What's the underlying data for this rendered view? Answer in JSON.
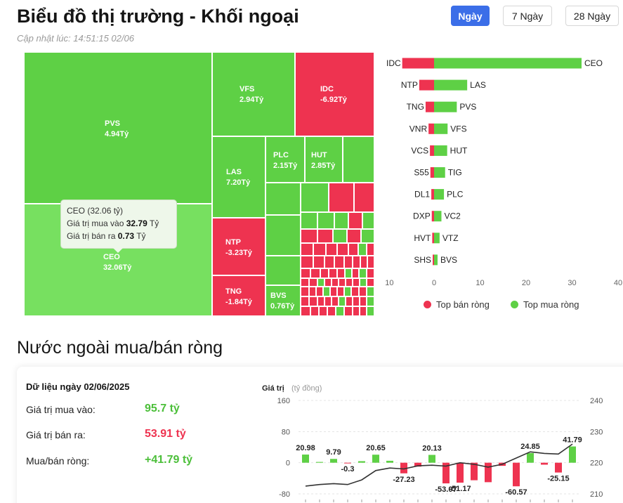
{
  "header": {
    "title": "Biểu đồ thị trường - Khối ngoại",
    "updated": "Cập nhật lúc: 14:51:15 02/06",
    "periods": [
      "Ngày",
      "7 Ngày",
      "28 Ngày"
    ],
    "active_period": "Ngày"
  },
  "colors": {
    "buy": "#5ed045",
    "sell": "#ee3350",
    "active_button": "#3b6ee8"
  },
  "treemap": {
    "tiles": [
      {
        "ticker": "PVS",
        "value": "4.94Tỷ"
      },
      {
        "ticker": "CEO",
        "value": "32.06Tỷ"
      },
      {
        "ticker": "VFS",
        "value": "2.94Tỷ"
      },
      {
        "ticker": "IDC",
        "value": "-6.92Tỷ"
      },
      {
        "ticker": "LAS",
        "value": "7.20Tỷ"
      },
      {
        "ticker": "PLC",
        "value": "2.15Tỷ"
      },
      {
        "ticker": "HUT",
        "value": "2.85Tỷ"
      },
      {
        "ticker": "NTP",
        "value": "-3.23Tỷ"
      },
      {
        "ticker": "TNG",
        "value": "-1.84Tỷ"
      },
      {
        "ticker": "BVS",
        "value": "0.76Tỷ"
      }
    ],
    "tooltip": {
      "title": "CEO (32.06 tỷ)",
      "buy_label": "Giá trị mua vào",
      "buy_value": "32.79",
      "sell_label": "Giá trị bán ra",
      "sell_value": "0.73",
      "unit": "Tỷ"
    }
  },
  "top_chart": {
    "sell_tickers": [
      "IDC",
      "NTP",
      "TNG",
      "VNR",
      "VCS",
      "S55",
      "DL1",
      "DXP",
      "HVT",
      "SHS"
    ],
    "sell_values": [
      -6.92,
      -3.23,
      -1.84,
      -1.2,
      -0.9,
      -0.8,
      -0.6,
      -0.5,
      -0.4,
      -0.3
    ],
    "buy_tickers": [
      "CEO",
      "LAS",
      "PVS",
      "VFS",
      "HUT",
      "TIG",
      "PLC",
      "VC2",
      "VTZ",
      "BVS"
    ],
    "buy_values": [
      32.06,
      7.2,
      4.94,
      2.94,
      2.85,
      2.4,
      2.15,
      1.6,
      1.2,
      0.76
    ],
    "xticks": [
      "-10",
      "0",
      "10",
      "20",
      "30",
      "40"
    ],
    "legend_sell": "Top bán ròng",
    "legend_buy": "Top mua ròng"
  },
  "net_section": {
    "title": "Nước ngoài mua/bán ròng",
    "date": "Dữ liệu ngày 02/06/2025",
    "rows": [
      {
        "label": "Giá trị mua vào:",
        "value": "95.7 tỷ",
        "color": "green"
      },
      {
        "label": "Giá trị bán ra:",
        "value": "53.91 tỷ",
        "color": "red"
      },
      {
        "label": "Mua/bán ròng:",
        "value": "+41.79 tỷ",
        "color": "green"
      }
    ]
  },
  "chart_data": [
    {
      "type": "bar",
      "title": "",
      "categories": [
        "IDC",
        "NTP",
        "TNG",
        "VNR",
        "VCS",
        "S55",
        "DL1",
        "DXP",
        "HVT",
        "SHS"
      ],
      "series": [
        {
          "name": "Top bán ròng",
          "values": [
            -6.92,
            -3.23,
            -1.84,
            -1.2,
            -0.9,
            -0.8,
            -0.6,
            -0.5,
            -0.4,
            -0.3
          ]
        },
        {
          "name": "Top mua ròng",
          "values": [
            32.06,
            7.2,
            4.94,
            2.94,
            2.85,
            2.4,
            2.15,
            1.6,
            1.2,
            0.76
          ]
        }
      ],
      "buy_labels": [
        "CEO",
        "LAS",
        "PVS",
        "VFS",
        "HUT",
        "TIG",
        "PLC",
        "VC2",
        "VTZ",
        "BVS"
      ],
      "xlim": [
        -10,
        40
      ],
      "orientation": "horizontal",
      "legend": "bottom"
    },
    {
      "type": "bar",
      "title": "",
      "ylabel": "Giá trị",
      "ylabel_unit": "(tỷ đồng)",
      "values": [
        20.98,
        2.0,
        9.79,
        -0.3,
        4.0,
        20.65,
        5.0,
        -27.23,
        -10.0,
        20.13,
        -53.07,
        -51.17,
        -45.0,
        -50.0,
        -8.0,
        -60.57,
        24.85,
        -5.0,
        -25.15,
        41.79
      ],
      "data_labels": [
        "20.98",
        "",
        "9.79",
        "-0.3",
        "",
        "20.65",
        "",
        "-27.23",
        "",
        "20.13",
        "-53.07",
        "-51.17",
        "",
        "",
        "",
        "-60.57",
        "24.85",
        "",
        "-25.15",
        "41.79"
      ],
      "ylim": [
        -80,
        160
      ],
      "yticks": [
        "160",
        "80",
        "0",
        "-80"
      ],
      "secondary_yticks": [
        "240",
        "230",
        "220",
        "210"
      ],
      "secondary_ylim": [
        210,
        240
      ],
      "line_values": [
        212.5,
        213.0,
        213.3,
        213.0,
        214.5,
        217.5,
        218.3,
        218.0,
        219.0,
        219.2,
        218.9,
        220.0,
        219.5,
        218.6,
        219.5,
        221.5,
        223.5,
        223.0,
        222.8,
        226.0
      ]
    }
  ]
}
